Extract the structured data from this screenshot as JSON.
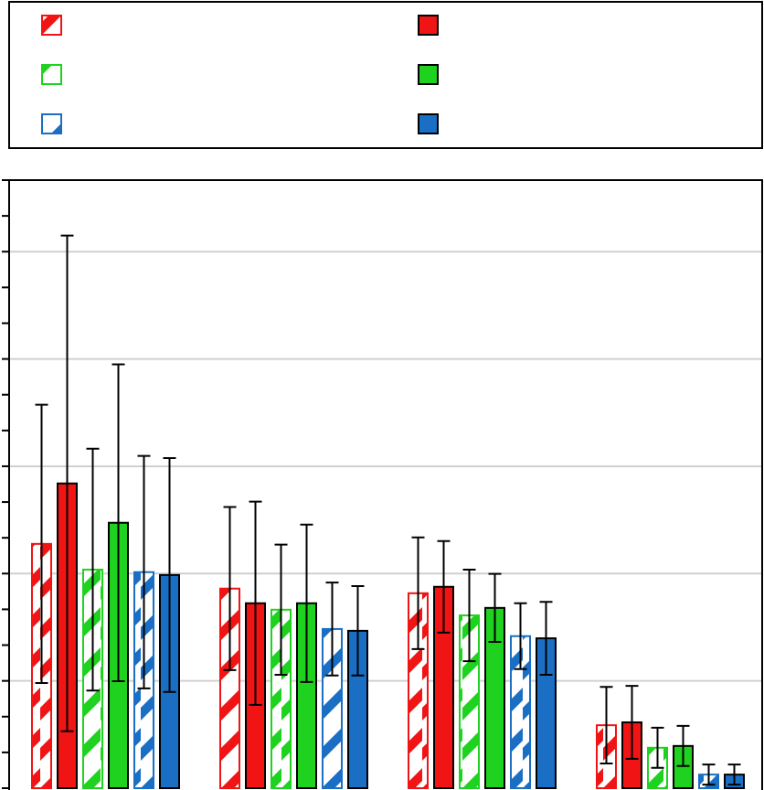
{
  "chart_data": {
    "type": "bar",
    "categories": [
      null,
      null,
      null,
      null
    ],
    "series": [
      {
        "color": "#f01414",
        "hatched": true,
        "values": [
          6.83,
          5.58,
          5.45,
          1.76
        ],
        "errors": [
          3.89,
          2.28,
          1.56,
          1.07
        ]
      },
      {
        "color": "#f01414",
        "hatched": false,
        "values": [
          8.52,
          5.17,
          5.63,
          1.84
        ],
        "errors": [
          6.93,
          2.84,
          1.28,
          1.02
        ]
      },
      {
        "color": "#1fd21f",
        "hatched": true,
        "values": [
          6.11,
          4.99,
          4.83,
          1.13
        ],
        "errors": [
          3.38,
          1.82,
          1.28,
          0.56
        ]
      },
      {
        "color": "#1fd21f",
        "hatched": false,
        "values": [
          7.42,
          5.17,
          5.04,
          1.18
        ],
        "errors": [
          4.43,
          2.2,
          0.95,
          0.56
        ]
      },
      {
        "color": "#1a6fc4",
        "hatched": true,
        "values": [
          6.04,
          4.45,
          4.25,
          0.38
        ],
        "errors": [
          3.25,
          1.3,
          0.92,
          0.28
        ]
      },
      {
        "color": "#1a6fc4",
        "hatched": false,
        "values": [
          5.96,
          4.4,
          4.19,
          0.38
        ],
        "errors": [
          3.27,
          1.25,
          1.02,
          0.28
        ]
      }
    ],
    "ylim": [
      0,
      17
    ],
    "yticks": [
      0,
      1,
      2,
      3,
      4,
      5,
      6,
      7,
      8,
      9,
      10,
      11,
      12,
      13,
      14,
      15,
      16,
      17
    ],
    "ygrid": [
      3,
      6,
      9,
      12,
      15
    ],
    "legend": "top"
  }
}
